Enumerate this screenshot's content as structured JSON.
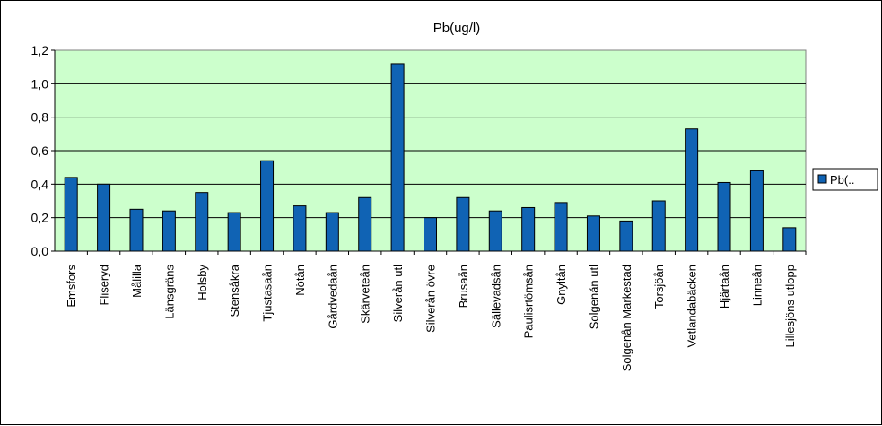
{
  "chart_data": {
    "type": "bar",
    "title": "Pb(ug/l)",
    "xlabel": "",
    "ylabel": "",
    "ylim": [
      0,
      1.2
    ],
    "yticks": [
      "0,0",
      "0,2",
      "0,4",
      "0,6",
      "0,8",
      "1,0",
      "1,2"
    ],
    "grid": true,
    "legend_position": "right",
    "colors": {
      "bar": "#1063b4",
      "bar_edge": "#000000",
      "plot_bg": "#ccffcc"
    },
    "categories": [
      "Emsfors",
      "Fliseryd",
      "Målilla",
      "Länsgräns",
      "Holsby",
      "Stensåkra",
      "Tjustasaån",
      "Nötån",
      "Gårdvedaån",
      "Skärveteån",
      "Silverån utl",
      "Silverån övre",
      "Brusaån",
      "Sällevadsån",
      "Paulisrtömsån",
      "Gnyltån",
      "Solgenån utl",
      "Solgenån Markestad",
      "Torsjöån",
      "Vetlandabäcken",
      "Hjärtaån",
      "Linneån",
      "Lillesjöns utlopp"
    ],
    "series": [
      {
        "name": "Pb(..",
        "values": [
          0.44,
          0.4,
          0.25,
          0.24,
          0.35,
          0.23,
          0.54,
          0.27,
          0.23,
          0.32,
          1.12,
          0.2,
          0.32,
          0.24,
          0.26,
          0.29,
          0.21,
          0.18,
          0.3,
          0.73,
          0.41,
          0.48,
          0.14
        ]
      }
    ]
  }
}
